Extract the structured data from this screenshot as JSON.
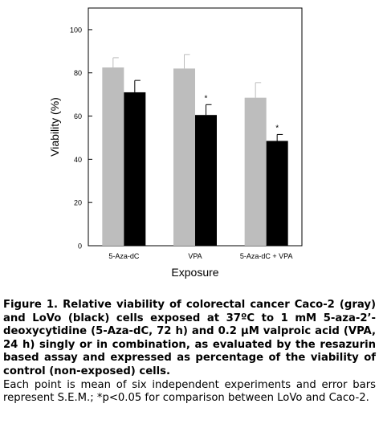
{
  "chart_data": {
    "type": "bar",
    "xlabel": "Exposure",
    "ylabel": "Viability (%)",
    "ylim": [
      0,
      110
    ],
    "yticks": [
      0,
      20,
      40,
      60,
      80,
      100
    ],
    "categories": [
      "5-Aza-dC",
      "VPA",
      "5-Aza-dC + VPA"
    ],
    "series": [
      {
        "color": "#bdbdbd",
        "values": [
          82.5,
          82,
          68.5
        ],
        "errors": [
          4.5,
          6.5,
          7
        ]
      },
      {
        "color": "#000000",
        "values": [
          71,
          60.5,
          48.5
        ],
        "errors": [
          5.5,
          4.8,
          3
        ]
      }
    ],
    "significance_marker": "*",
    "significant": [
      {
        "category": 1,
        "series": 1
      },
      {
        "category": 2,
        "series": 1
      }
    ],
    "grid": false,
    "legend": "none"
  },
  "caption": {
    "heading": "Figure 1. Relative viability of colorectal cancer Caco-2 (gray) and LoVo (black) cells exposed at 37ºC to 1 mM 5-aza-2’-deoxycytidine (5-Aza-dC, 72 h) and 0.2 µM valproic acid (VPA, 24 h) singly or in combination, as evaluated by the resazurin based assay and expressed as percentage of the viability of control (non-exposed) cells.",
    "body": "Each point is mean of six independent experiments and error bars represent S.E.M.; *p<0.05 for comparison between LoVo and Caco-2."
  }
}
